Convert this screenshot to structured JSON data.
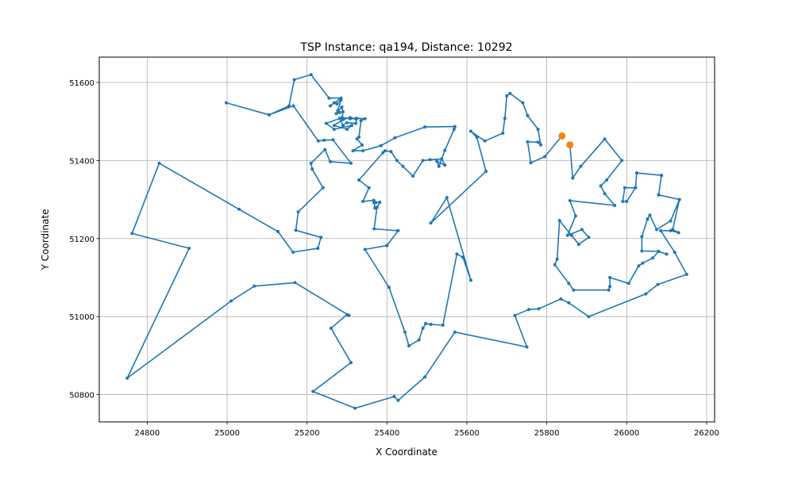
{
  "chart_data": {
    "type": "line",
    "title": "TSP Instance: qa194, Distance: 10292",
    "xlabel": "X Coordinate",
    "ylabel": "Y Coordinate",
    "xlim": [
      24680,
      26220
    ],
    "ylim": [
      50730,
      51665
    ],
    "x_ticks": [
      24800,
      25000,
      25200,
      25400,
      25600,
      25800,
      26000,
      26200
    ],
    "y_ticks": [
      50800,
      51000,
      51200,
      51400,
      51600
    ],
    "grid": true,
    "colors": {
      "route": "#1f77b4",
      "highlight": "#ff7f0e",
      "grid": "#b0b0b0"
    },
    "series": [
      {
        "values": [
          [
            25858,
            51440
          ],
          [
            25865,
            51355
          ],
          [
            25885,
            51385
          ],
          [
            25945,
            51455
          ],
          [
            25988,
            51400
          ],
          [
            25950,
            51350
          ],
          [
            25935,
            51335
          ],
          [
            25945,
            51315
          ],
          [
            25970,
            51285
          ],
          [
            25858,
            51297
          ],
          [
            25872,
            51258
          ],
          [
            25852,
            51208
          ],
          [
            25888,
            51223
          ],
          [
            25905,
            51203
          ],
          [
            25880,
            51185
          ],
          [
            25862,
            51208
          ],
          [
            25832,
            51246
          ],
          [
            25826,
            51147
          ],
          [
            25820,
            51133
          ],
          [
            25855,
            51085
          ],
          [
            25867,
            51068
          ],
          [
            25955,
            51068
          ],
          [
            25958,
            51077
          ],
          [
            25958,
            51100
          ],
          [
            26005,
            51085
          ],
          [
            26030,
            51130
          ],
          [
            26040,
            51137
          ],
          [
            26065,
            51150
          ],
          [
            26080,
            51167
          ],
          [
            26100,
            51160
          ],
          [
            26080,
            51167
          ],
          [
            26038,
            51168
          ],
          [
            26038,
            51205
          ],
          [
            26052,
            51250
          ],
          [
            26058,
            51260
          ],
          [
            26075,
            51223
          ],
          [
            26110,
            51245
          ],
          [
            26132,
            51300
          ],
          [
            26080,
            51312
          ],
          [
            26087,
            51362
          ],
          [
            26025,
            51368
          ],
          [
            26022,
            51330
          ],
          [
            25995,
            51330
          ],
          [
            25990,
            51295
          ],
          [
            26000,
            51295
          ],
          [
            26022,
            51330
          ],
          [
            26025,
            51368
          ],
          [
            26087,
            51362
          ],
          [
            26080,
            51312
          ],
          [
            26132,
            51300
          ],
          [
            26115,
            51223
          ],
          [
            26130,
            51215
          ],
          [
            26110,
            51220
          ],
          [
            26085,
            51220
          ],
          [
            26120,
            51165
          ],
          [
            26150,
            51108
          ],
          [
            26078,
            51082
          ],
          [
            26048,
            51058
          ],
          [
            25905,
            51000
          ],
          [
            25855,
            51035
          ],
          [
            25835,
            51045
          ],
          [
            25780,
            51020
          ],
          [
            25755,
            51018
          ],
          [
            25720,
            51003
          ],
          [
            25750,
            50922
          ],
          [
            25570,
            50960
          ],
          [
            25495,
            50845
          ],
          [
            25428,
            50785
          ],
          [
            25418,
            50795
          ],
          [
            25320,
            50765
          ],
          [
            25215,
            50808
          ],
          [
            25310,
            50882
          ],
          [
            25260,
            50970
          ],
          [
            25300,
            51005
          ],
          [
            25305,
            51003
          ],
          [
            25170,
            51087
          ],
          [
            25068,
            51078
          ],
          [
            25010,
            51040
          ],
          [
            24750,
            50842
          ],
          [
            24905,
            51175
          ],
          [
            24762,
            51213
          ],
          [
            24830,
            51393
          ],
          [
            25030,
            51275
          ],
          [
            25127,
            51218
          ],
          [
            25165,
            51165
          ],
          [
            25227,
            51175
          ],
          [
            25235,
            51203
          ],
          [
            25172,
            51221
          ],
          [
            25178,
            51268
          ],
          [
            25240,
            51330
          ],
          [
            25213,
            51378
          ],
          [
            25210,
            51393
          ],
          [
            25245,
            51428
          ],
          [
            25258,
            51397
          ],
          [
            25310,
            51393
          ],
          [
            25265,
            51453
          ],
          [
            25243,
            51452
          ],
          [
            25228,
            51450
          ],
          [
            25166,
            51540
          ],
          [
            25105,
            51517
          ],
          [
            24998,
            51548
          ],
          [
            25105,
            51517
          ],
          [
            25155,
            51540
          ],
          [
            25168,
            51607
          ],
          [
            25210,
            51620
          ],
          [
            25255,
            51560
          ],
          [
            25285,
            51560
          ],
          [
            25258,
            51540
          ],
          [
            25268,
            51548
          ],
          [
            25275,
            51545
          ],
          [
            25285,
            51555
          ],
          [
            25277,
            51528
          ],
          [
            25282,
            51523
          ],
          [
            25273,
            51520
          ],
          [
            25287,
            51537
          ],
          [
            25290,
            51525
          ],
          [
            25288,
            51510
          ],
          [
            25308,
            51507
          ],
          [
            25322,
            51507
          ],
          [
            25308,
            51510
          ],
          [
            25290,
            51505
          ],
          [
            25268,
            51490
          ],
          [
            25300,
            51480
          ],
          [
            25312,
            51490
          ],
          [
            25268,
            51480
          ],
          [
            25248,
            51495
          ],
          [
            25282,
            51508
          ],
          [
            25290,
            51490
          ],
          [
            25300,
            51497
          ],
          [
            25322,
            51495
          ],
          [
            25325,
            51508
          ],
          [
            25345,
            51507
          ],
          [
            25335,
            51502
          ],
          [
            25330,
            51460
          ],
          [
            25325,
            51455
          ],
          [
            25338,
            51440
          ],
          [
            25315,
            51425
          ],
          [
            25340,
            51425
          ],
          [
            25385,
            51438
          ],
          [
            25420,
            51458
          ],
          [
            25495,
            51486
          ],
          [
            25570,
            51487
          ],
          [
            25568,
            51480
          ],
          [
            25545,
            51426
          ],
          [
            25530,
            51385
          ],
          [
            25525,
            51398
          ],
          [
            25545,
            51388
          ],
          [
            25537,
            51404
          ],
          [
            25508,
            51402
          ],
          [
            25490,
            51400
          ],
          [
            25465,
            51360
          ],
          [
            25440,
            51385
          ],
          [
            25425,
            51400
          ],
          [
            25410,
            51423
          ],
          [
            25395,
            51425
          ],
          [
            25390,
            51420
          ],
          [
            25330,
            51350
          ],
          [
            25355,
            51330
          ],
          [
            25340,
            51295
          ],
          [
            25367,
            51298
          ],
          [
            25370,
            51278
          ],
          [
            25368,
            51292
          ],
          [
            25372,
            51292
          ],
          [
            25382,
            51293
          ],
          [
            25375,
            51280
          ],
          [
            25368,
            51225
          ],
          [
            25427,
            51220
          ],
          [
            25428,
            51220
          ],
          [
            25400,
            51182
          ],
          [
            25345,
            51172
          ],
          [
            25405,
            51075
          ],
          [
            25445,
            50960
          ],
          [
            25455,
            50925
          ],
          [
            25480,
            50940
          ],
          [
            25490,
            50970
          ],
          [
            25497,
            50982
          ],
          [
            25510,
            50980
          ],
          [
            25540,
            50978
          ],
          [
            25575,
            51160
          ],
          [
            25590,
            51152
          ],
          [
            25610,
            51093
          ],
          [
            25550,
            51305
          ],
          [
            25510,
            51240
          ],
          [
            25648,
            51372
          ],
          [
            25625,
            51459
          ],
          [
            25610,
            51475
          ],
          [
            25645,
            51450
          ],
          [
            25690,
            51470
          ],
          [
            25695,
            51508
          ],
          [
            25700,
            51566
          ],
          [
            25708,
            51572
          ],
          [
            25740,
            51548
          ],
          [
            25752,
            51515
          ],
          [
            25778,
            51480
          ],
          [
            25785,
            51440
          ],
          [
            25778,
            51447
          ],
          [
            25752,
            51448
          ],
          [
            25760,
            51394
          ],
          [
            25795,
            51410
          ],
          [
            25838,
            51463
          ]
        ]
      }
    ],
    "highlighted_points": [
      [
        25838,
        51463
      ],
      [
        25858,
        51440
      ]
    ]
  }
}
